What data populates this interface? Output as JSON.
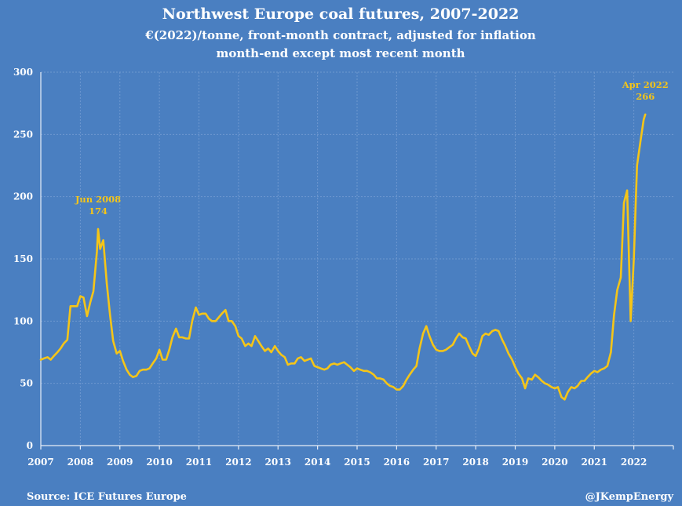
{
  "colors": {
    "background": "#4a7fc1",
    "line": "#f5c518",
    "text": "#ffffff"
  },
  "chart_data": {
    "type": "line",
    "title": "Northwest Europe coal futures, 2007-2022",
    "subtitle_1": "€(2022)/tonne, front-month contract, adjusted for inflation",
    "subtitle_2": "month-end except most recent month",
    "source": "Source: ICE Futures Europe",
    "credit": "@JKempEnergy",
    "ylim": [
      0,
      300
    ],
    "yticks": [
      "0",
      "50",
      "100",
      "150",
      "200",
      "250",
      "300"
    ],
    "xlim": [
      2007,
      2023
    ],
    "xticks": [
      "2007",
      "2008",
      "2009",
      "2010",
      "2011",
      "2012",
      "2013",
      "2014",
      "2015",
      "2016",
      "2017",
      "2018",
      "2019",
      "2020",
      "2021",
      "2022"
    ],
    "annotations": [
      {
        "line1": "Jun 2008",
        "line2": "174",
        "x": 2008.45,
        "y": 174
      },
      {
        "line1": "Apr 2022",
        "line2": "266",
        "x": 2022.29,
        "y": 266
      }
    ],
    "series": [
      {
        "name": "Coal futures",
        "x": [
          2007.0,
          2007.08,
          2007.17,
          2007.25,
          2007.33,
          2007.42,
          2007.5,
          2007.58,
          2007.67,
          2007.75,
          2007.83,
          2007.92,
          2008.0,
          2008.08,
          2008.17,
          2008.25,
          2008.33,
          2008.42,
          2008.45,
          2008.5,
          2008.58,
          2008.67,
          2008.75,
          2008.83,
          2008.92,
          2009.0,
          2009.08,
          2009.17,
          2009.25,
          2009.33,
          2009.42,
          2009.5,
          2009.58,
          2009.67,
          2009.75,
          2009.83,
          2009.92,
          2010.0,
          2010.08,
          2010.17,
          2010.25,
          2010.33,
          2010.42,
          2010.5,
          2010.58,
          2010.67,
          2010.75,
          2010.83,
          2010.92,
          2011.0,
          2011.08,
          2011.17,
          2011.25,
          2011.33,
          2011.42,
          2011.5,
          2011.58,
          2011.67,
          2011.75,
          2011.83,
          2011.92,
          2012.0,
          2012.08,
          2012.17,
          2012.25,
          2012.33,
          2012.42,
          2012.5,
          2012.58,
          2012.67,
          2012.75,
          2012.83,
          2012.92,
          2013.0,
          2013.08,
          2013.17,
          2013.25,
          2013.33,
          2013.42,
          2013.5,
          2013.58,
          2013.67,
          2013.75,
          2013.83,
          2013.92,
          2014.0,
          2014.08,
          2014.17,
          2014.25,
          2014.33,
          2014.42,
          2014.5,
          2014.58,
          2014.67,
          2014.75,
          2014.83,
          2014.92,
          2015.0,
          2015.08,
          2015.17,
          2015.25,
          2015.33,
          2015.42,
          2015.5,
          2015.58,
          2015.67,
          2015.75,
          2015.83,
          2015.92,
          2016.0,
          2016.08,
          2016.17,
          2016.25,
          2016.33,
          2016.42,
          2016.5,
          2016.58,
          2016.67,
          2016.75,
          2016.83,
          2016.92,
          2017.0,
          2017.08,
          2017.17,
          2017.25,
          2017.33,
          2017.42,
          2017.5,
          2017.58,
          2017.67,
          2017.75,
          2017.83,
          2017.92,
          2018.0,
          2018.08,
          2018.17,
          2018.25,
          2018.33,
          2018.42,
          2018.5,
          2018.58,
          2018.67,
          2018.75,
          2018.83,
          2018.92,
          2019.0,
          2019.08,
          2019.17,
          2019.25,
          2019.33,
          2019.42,
          2019.5,
          2019.58,
          2019.67,
          2019.75,
          2019.83,
          2019.92,
          2020.0,
          2020.08,
          2020.17,
          2020.25,
          2020.33,
          2020.42,
          2020.5,
          2020.58,
          2020.67,
          2020.75,
          2020.83,
          2020.92,
          2021.0,
          2021.08,
          2021.17,
          2021.25,
          2021.33,
          2021.42,
          2021.5,
          2021.58,
          2021.67,
          2021.75,
          2021.83,
          2021.92,
          2022.0,
          2022.08,
          2022.17,
          2022.25,
          2022.29
        ],
        "values": [
          69,
          70,
          71,
          69,
          72,
          75,
          78,
          82,
          85,
          112,
          112,
          112,
          120,
          119,
          104,
          115,
          124,
          156,
          174,
          158,
          165,
          130,
          105,
          84,
          74,
          76,
          68,
          61,
          57,
          55,
          56,
          60,
          61,
          61,
          62,
          66,
          70,
          77,
          69,
          69,
          77,
          87,
          94,
          87,
          87,
          86,
          86,
          100,
          111,
          105,
          106,
          106,
          102,
          100,
          100,
          103,
          106,
          109,
          100,
          100,
          96,
          88,
          86,
          80,
          82,
          80,
          88,
          84,
          80,
          76,
          78,
          75,
          80,
          76,
          73,
          71,
          65,
          66,
          66,
          70,
          71,
          68,
          69,
          70,
          64,
          63,
          62,
          61,
          62,
          65,
          66,
          65,
          66,
          67,
          65,
          63,
          60,
          62,
          61,
          60,
          60,
          59,
          57,
          54,
          54,
          53,
          50,
          48,
          47,
          45,
          45,
          48,
          53,
          57,
          61,
          64,
          78,
          90,
          96,
          88,
          81,
          77,
          76,
          76,
          77,
          79,
          81,
          86,
          90,
          87,
          86,
          80,
          74,
          72,
          78,
          88,
          90,
          89,
          92,
          93,
          92,
          85,
          80,
          74,
          69,
          63,
          58,
          54,
          46,
          54,
          53,
          57,
          55,
          52,
          50,
          49,
          47,
          46,
          47,
          39,
          37,
          43,
          47,
          46,
          48,
          52,
          52,
          55,
          58,
          60,
          59,
          61,
          62,
          64,
          75,
          105,
          125,
          135,
          195,
          205,
          100,
          150,
          225,
          245,
          262,
          266
        ]
      }
    ]
  }
}
